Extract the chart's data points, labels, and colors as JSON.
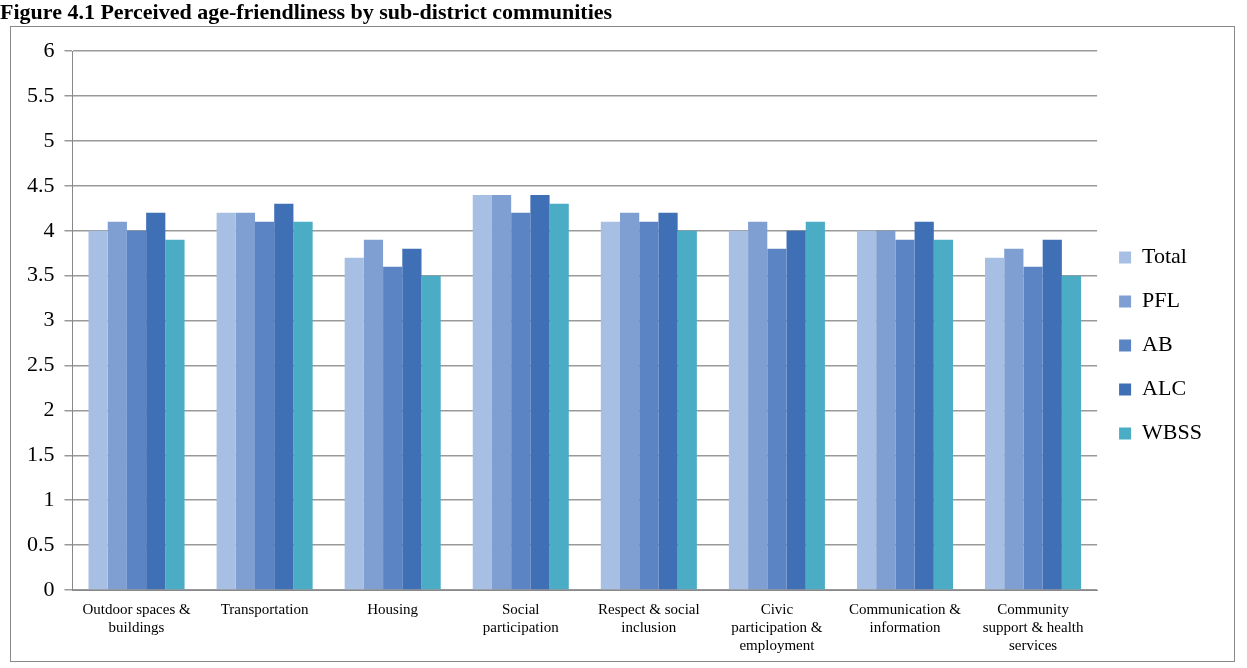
{
  "chart_data": {
    "type": "bar",
    "title": "Figure 4.1 Perceived age-friendliness by sub-district communities",
    "categories": [
      "Outdoor spaces & buildings",
      "Transportation",
      "Housing",
      "Social participation",
      "Respect & social inclusion",
      "Civic participation & employment",
      "Communication & information",
      "Community support & health services"
    ],
    "series": [
      {
        "name": "Total",
        "color": "#a7bfe3",
        "values": [
          4.0,
          4.2,
          3.7,
          4.4,
          4.1,
          4.0,
          4.0,
          3.7
        ]
      },
      {
        "name": "PFL",
        "color": "#7f9fd2",
        "values": [
          4.1,
          4.2,
          3.9,
          4.4,
          4.2,
          4.1,
          4.0,
          3.8
        ]
      },
      {
        "name": "AB",
        "color": "#5b84c4",
        "values": [
          4.0,
          4.1,
          3.6,
          4.2,
          4.1,
          3.8,
          3.9,
          3.6
        ]
      },
      {
        "name": "ALC",
        "color": "#3f6fb5",
        "values": [
          4.2,
          4.3,
          3.8,
          4.4,
          4.2,
          4.0,
          4.1,
          3.9
        ]
      },
      {
        "name": "WBSS",
        "color": "#4bacc6",
        "values": [
          3.9,
          4.1,
          3.5,
          4.3,
          4.0,
          4.1,
          3.9,
          3.5
        ]
      }
    ],
    "ylim": [
      0,
      6
    ],
    "yticks": [
      0,
      0.5,
      1,
      1.5,
      2,
      2.5,
      3,
      3.5,
      4,
      4.5,
      5,
      5.5,
      6
    ],
    "grid": "y",
    "legend": "right"
  }
}
